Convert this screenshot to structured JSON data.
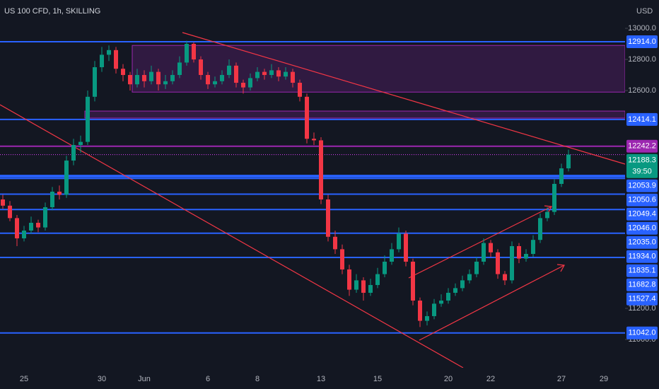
{
  "chart_data": {
    "type": "candlestick",
    "title": "US 100 CFD, 1h, SKILLING",
    "currency": "USD",
    "up_color": "#089981",
    "down_color": "#f23645",
    "ylim": [
      10818,
      13182
    ],
    "yticks": [
      {
        "value": 13000,
        "label": "13000.0"
      },
      {
        "value": 12800,
        "label": "12800.0"
      },
      {
        "value": 12600,
        "label": "12600.0"
      },
      {
        "value": 11200,
        "label": "11200.0"
      },
      {
        "value": 11000,
        "label": "11000.0"
      }
    ],
    "categories": [
      null,
      null,
      null,
      "25",
      null,
      null,
      null,
      null,
      null,
      null,
      null,
      null,
      null,
      null,
      "30",
      null,
      null,
      null,
      null,
      null,
      "Jun",
      null,
      null,
      null,
      null,
      null,
      null,
      null,
      null,
      "6",
      null,
      null,
      null,
      null,
      null,
      null,
      "8",
      null,
      null,
      null,
      null,
      null,
      null,
      null,
      null,
      "13",
      null,
      null,
      null,
      null,
      null,
      null,
      null,
      "15",
      null,
      null,
      null,
      null,
      null,
      null,
      null,
      null,
      null,
      "20",
      null,
      null,
      null,
      null,
      null,
      "22",
      null,
      null,
      null,
      null,
      null,
      null,
      null,
      null,
      null,
      "27",
      null,
      null,
      null,
      null,
      null,
      "29",
      null,
      null,
      null
    ],
    "ohlc": [
      [
        11900,
        11930,
        11840,
        11860
      ],
      [
        11860,
        11890,
        11760,
        11780
      ],
      [
        11780,
        11800,
        11600,
        11650
      ],
      [
        11650,
        11730,
        11630,
        11700
      ],
      [
        11700,
        11790,
        11680,
        11750
      ],
      [
        11750,
        11770,
        11690,
        11720
      ],
      [
        11720,
        11880,
        11700,
        11850
      ],
      [
        11850,
        11980,
        11830,
        11950
      ],
      [
        11950,
        11990,
        11900,
        11930
      ],
      [
        11930,
        12180,
        11910,
        12150
      ],
      [
        12150,
        12290,
        12120,
        12250
      ],
      [
        12250,
        12310,
        12200,
        12270
      ],
      [
        12270,
        12600,
        12250,
        12560
      ],
      [
        12560,
        12790,
        12530,
        12750
      ],
      [
        12750,
        12880,
        12720,
        12830
      ],
      [
        12830,
        12890,
        12790,
        12860
      ],
      [
        12860,
        12880,
        12710,
        12740
      ],
      [
        12740,
        12770,
        12660,
        12700
      ],
      [
        12700,
        12720,
        12600,
        12640
      ],
      [
        12640,
        12740,
        12620,
        12700
      ],
      [
        12700,
        12730,
        12620,
        12660
      ],
      [
        12660,
        12760,
        12640,
        12720
      ],
      [
        12720,
        12740,
        12600,
        12640
      ],
      [
        12640,
        12700,
        12610,
        12660
      ],
      [
        12660,
        12730,
        12640,
        12700
      ],
      [
        12700,
        12820,
        12680,
        12780
      ],
      [
        12780,
        12920,
        12760,
        12900
      ],
      [
        12900,
        12910,
        12780,
        12800
      ],
      [
        12800,
        12820,
        12670,
        12700
      ],
      [
        12700,
        12720,
        12610,
        12640
      ],
      [
        12640,
        12690,
        12620,
        12660
      ],
      [
        12660,
        12730,
        12640,
        12700
      ],
      [
        12700,
        12800,
        12680,
        12760
      ],
      [
        12760,
        12780,
        12620,
        12650
      ],
      [
        12650,
        12670,
        12580,
        12620
      ],
      [
        12620,
        12710,
        12600,
        12680
      ],
      [
        12680,
        12750,
        12660,
        12720
      ],
      [
        12720,
        12740,
        12670,
        12700
      ],
      [
        12700,
        12770,
        12680,
        12730
      ],
      [
        12730,
        12750,
        12660,
        12690
      ],
      [
        12690,
        12750,
        12670,
        12720
      ],
      [
        12720,
        12740,
        12620,
        12650
      ],
      [
        12650,
        12670,
        12530,
        12560
      ],
      [
        12560,
        12580,
        12260,
        12290
      ],
      [
        12290,
        12330,
        12250,
        12280
      ],
      [
        12280,
        12300,
        11870,
        11900
      ],
      [
        11900,
        11930,
        11630,
        11660
      ],
      [
        11660,
        11700,
        11550,
        11580
      ],
      [
        11580,
        11610,
        11420,
        11450
      ],
      [
        11450,
        11480,
        11280,
        11320
      ],
      [
        11320,
        11420,
        11300,
        11380
      ],
      [
        11380,
        11400,
        11250,
        11300
      ],
      [
        11300,
        11390,
        11280,
        11350
      ],
      [
        11350,
        11460,
        11330,
        11420
      ],
      [
        11420,
        11540,
        11400,
        11500
      ],
      [
        11500,
        11620,
        11480,
        11580
      ],
      [
        11580,
        11720,
        11560,
        11680
      ],
      [
        11680,
        11700,
        11470,
        11500
      ],
      [
        11500,
        11520,
        11220,
        11250
      ],
      [
        11250,
        11270,
        11080,
        11120
      ],
      [
        11120,
        11180,
        11090,
        11150
      ],
      [
        11150,
        11260,
        11130,
        11230
      ],
      [
        11230,
        11290,
        11210,
        11250
      ],
      [
        11250,
        11330,
        11230,
        11300
      ],
      [
        11300,
        11360,
        11280,
        11330
      ],
      [
        11330,
        11410,
        11310,
        11380
      ],
      [
        11380,
        11450,
        11360,
        11420
      ],
      [
        11420,
        11530,
        11400,
        11500
      ],
      [
        11500,
        11650,
        11480,
        11620
      ],
      [
        11620,
        11640,
        11530,
        11560
      ],
      [
        11560,
        11580,
        11390,
        11420
      ],
      [
        11420,
        11440,
        11350,
        11380
      ],
      [
        11380,
        11630,
        11360,
        11600
      ],
      [
        11600,
        11620,
        11490,
        11520
      ],
      [
        11520,
        11580,
        11500,
        11550
      ],
      [
        11550,
        11670,
        11530,
        11640
      ],
      [
        11640,
        11810,
        11620,
        11780
      ],
      [
        11780,
        11850,
        11760,
        11820
      ],
      [
        11820,
        12030,
        11800,
        12000
      ],
      [
        12000,
        12130,
        11980,
        12100
      ],
      [
        12100,
        12220,
        12080,
        12188.3
      ],
      null,
      null,
      null,
      null,
      null,
      null,
      null,
      null
    ],
    "levels": [
      {
        "value": 12914.0,
        "label": "12914.0",
        "color": "#2962ff"
      },
      {
        "value": 12414.1,
        "label": "12414.1",
        "color": "#2962ff"
      },
      {
        "value": 12242.2,
        "label": "12242.2",
        "color": "#9c27b0"
      },
      {
        "value": 12053.9,
        "label": "12053.9",
        "color": "#2962ff"
      },
      {
        "value": 12050.6,
        "label": "12050.6",
        "color": "#2962ff"
      },
      {
        "value": 12049.4,
        "label": "12049.4",
        "color": "#2962ff"
      },
      {
        "value": 12046.0,
        "label": "12046.0",
        "color": "#2962ff"
      },
      {
        "value": 12035.0,
        "label": "12035.0",
        "color": "#2962ff"
      },
      {
        "value": 11934.0,
        "label": "11934.0",
        "color": "#2962ff"
      },
      {
        "value": 11835.1,
        "label": "11835.1",
        "color": "#2962ff"
      },
      {
        "value": 11682.8,
        "label": "11682.8",
        "color": "#2962ff"
      },
      {
        "value": 11527.4,
        "label": "11527.4",
        "color": "#2962ff"
      },
      {
        "value": 11042.0,
        "label": "11042.0",
        "color": "#2962ff"
      }
    ],
    "last_price": {
      "value": 12188.3,
      "label": "12188.3",
      "countdown": "39:50",
      "color": "#089981"
    },
    "zones": [
      {
        "high": 12890,
        "low": 12590,
        "color": "#9c27b0"
      },
      {
        "high": 12468,
        "low": 12423,
        "color": "#9c27b0"
      }
    ]
  }
}
